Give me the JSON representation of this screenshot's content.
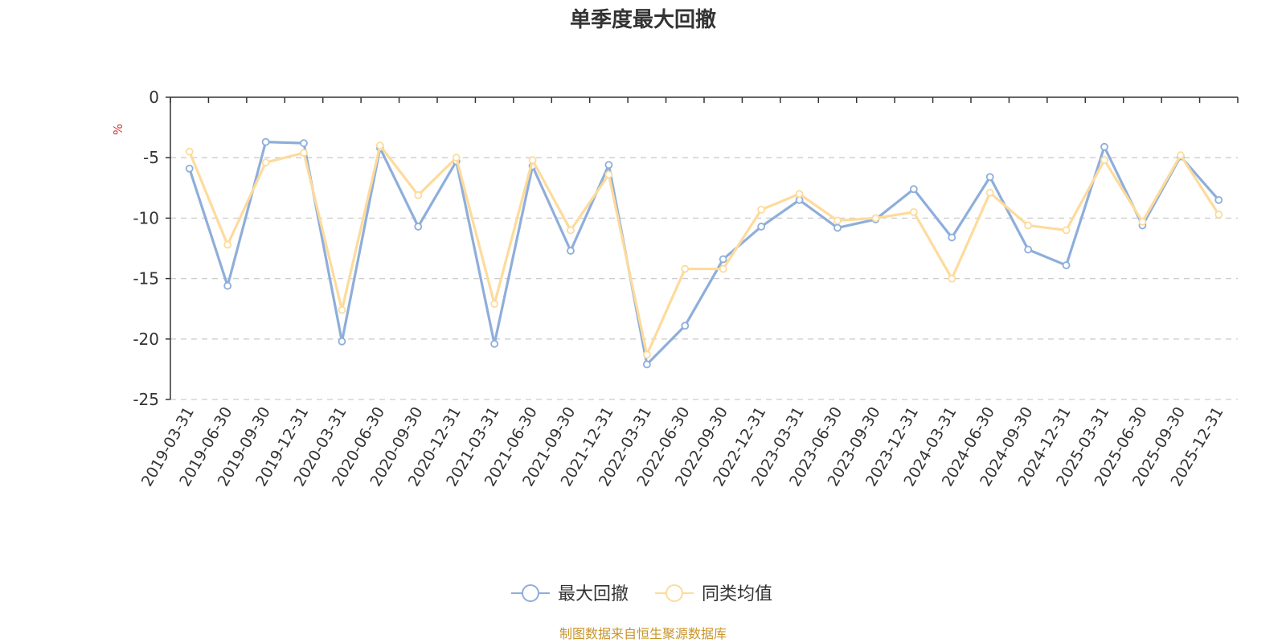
{
  "chart_data": {
    "type": "line",
    "title": "单季度最大回撤",
    "ylabel": "%",
    "ylim": [
      -25,
      0
    ],
    "yticks": [
      0,
      -5,
      -10,
      -15,
      -20,
      -25
    ],
    "grid": "horizontal dashed",
    "legend_position": "bottom-center",
    "categories": [
      "2019-03-31",
      "2019-06-30",
      "2019-09-30",
      "2019-12-31",
      "2020-03-31",
      "2020-06-30",
      "2020-09-30",
      "2020-12-31",
      "2021-03-31",
      "2021-06-30",
      "2021-09-30",
      "2021-12-31",
      "2022-03-31",
      "2022-06-30",
      "2022-09-30",
      "2022-12-31",
      "2023-03-31",
      "2023-06-30",
      "2023-09-30",
      "2023-12-31",
      "2024-03-31",
      "2024-06-30",
      "2024-09-30",
      "2024-12-31",
      "2025-03-31",
      "2025-06-30",
      "2025-09-30",
      "2025-12-31"
    ],
    "series": [
      {
        "name": "最大回撤",
        "color": "#8eaedb",
        "values": [
          -5.9,
          -15.6,
          -3.7,
          -3.8,
          -20.2,
          -4.2,
          -10.7,
          -5.3,
          -20.4,
          -5.7,
          -12.7,
          -5.6,
          -22.1,
          -18.9,
          -13.4,
          -10.7,
          -8.5,
          -10.8,
          -10.1,
          -7.6,
          -11.6,
          -6.6,
          -12.6,
          -13.9,
          -4.1,
          -10.6,
          -4.9,
          -8.5
        ]
      },
      {
        "name": "同类均值",
        "color": "#fddb9c",
        "values": [
          -4.5,
          -12.2,
          -5.4,
          -4.6,
          -17.6,
          -4.0,
          -8.1,
          -5.0,
          -17.1,
          -5.2,
          -11.0,
          -6.4,
          -21.3,
          -14.2,
          -14.2,
          -9.3,
          -8.0,
          -10.2,
          -10.0,
          -9.5,
          -15.0,
          -7.9,
          -10.6,
          -11.0,
          -5.2,
          -10.3,
          -4.8,
          -9.7
        ]
      }
    ]
  },
  "footer": {
    "source": "制图数据来自恒生聚源数据库",
    "source_color": "#c8952c"
  },
  "colors": {
    "axis": "#333333",
    "grid": "#cccccc",
    "unit": "#e03030"
  }
}
